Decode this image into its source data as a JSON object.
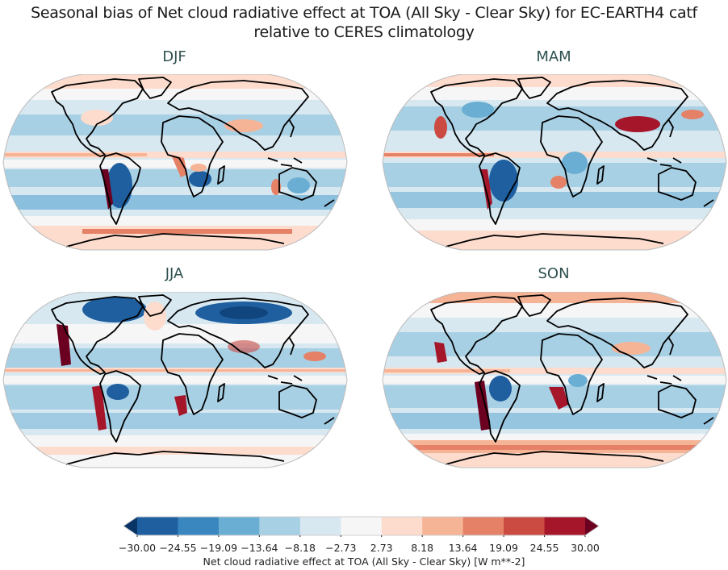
{
  "title": {
    "line1": "Seasonal bias of Net cloud radiative effect at TOA (All Sky - Clear Sky) for EC-EARTH4 catf",
    "line2": "relative to CERES climatology"
  },
  "panels": [
    {
      "label": "DJF"
    },
    {
      "label": "MAM"
    },
    {
      "label": "JJA"
    },
    {
      "label": "SON"
    }
  ],
  "colorbar": {
    "label": "Net cloud radiative effect at TOA (All Sky - Clear Sky) [W m**-2]",
    "ticks": [
      "−30.00",
      "−24.55",
      "−19.09",
      "−13.64",
      "−8.18",
      "−2.73",
      "2.73",
      "8.18",
      "13.64",
      "19.09",
      "24.55",
      "30.00"
    ],
    "colors": [
      "#1f5fa0",
      "#3a86bf",
      "#6aaed4",
      "#a8d0e4",
      "#d7e8f1",
      "#f6f6f6",
      "#fddccd",
      "#f6b497",
      "#e58166",
      "#cb4a42",
      "#a5162b"
    ],
    "under_color": "#083466",
    "over_color": "#6b0020",
    "extend": "both"
  },
  "chart_data": {
    "type": "heatmap",
    "title": "Seasonal bias of Net cloud radiative effect at TOA (All Sky - Clear Sky) for EC-EARTH4 catf relative to CERES climatology",
    "projection": "Robinson",
    "subplots": [
      "DJF",
      "MAM",
      "JJA",
      "SON"
    ],
    "layout": "2x2",
    "colorbar": {
      "label": "Net cloud radiative effect at TOA (All Sky - Clear Sky) [W m**-2]",
      "levels": [
        -30.0,
        -24.55,
        -19.09,
        -13.64,
        -8.18,
        -2.73,
        2.73,
        8.18,
        13.64,
        19.09,
        24.55,
        30.0
      ],
      "vmin": -30.0,
      "vmax": 30.0,
      "colormap": "RdBu_r",
      "extend": "both",
      "orientation": "horizontal",
      "position": "bottom"
    },
    "notable_features": [
      "Strong positive bias (dark red) along stratocumulus regions off west coasts of South America and southern Africa in all seasons",
      "Strong positive bias off California in JJA and SON",
      "Negative bias (blue) over Amazon and tropical Africa",
      "Strong negative bias over northern high latitude land in JJA",
      "Positive bias over Tibetan Plateau / East Asia in MAM",
      "Positive band in the Southern Ocean, strongest in SON and DJF",
      "Positive equatorial Pacific band north of the equator"
    ]
  }
}
